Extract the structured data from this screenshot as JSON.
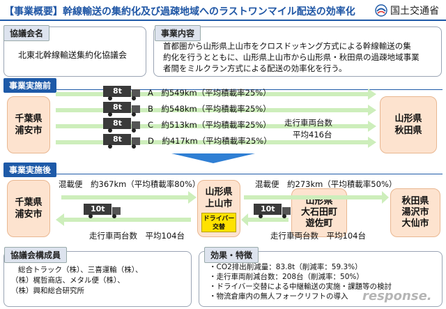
{
  "header": {
    "title": "【事業概要】幹線輸送の集約化及び過疎地域へのラストワンマイル配送の効率化",
    "ministry": "国土交通省"
  },
  "council": {
    "tag": "協議会名",
    "name": "北東北幹線輸送集約化協議会"
  },
  "content": {
    "tag": "事業内容",
    "lines": [
      "首都圏から山形県上山市をクロスドッキング方式による幹線輸送の集",
      "約化を行うとともに、山形県上山市から山形県・秋田県の過疎地域事業",
      "者間をミルクラン方式による配送の効率化を行う。"
    ]
  },
  "before": {
    "tag": "事業実施前",
    "origin": [
      "千葉県",
      "浦安市"
    ],
    "destination": [
      "山形県",
      "秋田県"
    ],
    "routes": [
      {
        "truck": "8t",
        "label": "A　約549km（平均積載率25%）"
      },
      {
        "truck": "8t",
        "label": "B　約548km（平均積載率25%）"
      },
      {
        "truck": "8t",
        "label": "C　約513km（平均積載率25%）"
      },
      {
        "truck": "8t",
        "label": "D　約417km（平均積載率25%）"
      }
    ],
    "vehicle_count": [
      "走行車両台数",
      "平均416台"
    ]
  },
  "after": {
    "tag": "事業実施後",
    "origin": [
      "千葉県",
      "浦安市"
    ],
    "hub": [
      "山形県",
      "上山市"
    ],
    "hub_badge": [
      "ドライバー",
      "交替"
    ],
    "mid": [
      "山形県",
      "大石田町",
      "遊佐町"
    ],
    "destination": [
      "秋田県",
      "湯沢市",
      "大仙市"
    ],
    "leg1": "混載便　約367km（平均積載率80%）",
    "leg2": "混載便　約273km（平均積載率50%）",
    "truck1": "10t",
    "truck2": "10t",
    "count1": "走行車両台数　平均104台",
    "count2": "走行車両台数　平均104台"
  },
  "members": {
    "tag": "協議会構成員",
    "lines": [
      "総合トラック（株）、三喜運輸（株）、",
      "（株）梶哲商店、メタル便（株）、",
      "（株）興和総合研究所"
    ]
  },
  "effects": {
    "tag": "効果・特徴",
    "lines": [
      "・CO2排出削減量：83.8t（削減率：59.3%）",
      "・走行車両削減台数：208台（削減率：50%）",
      "・ドライバー交替による中継輸送の実施・課題等の検討",
      "・物流倉庫内の無人フォークリフトの導入"
    ]
  },
  "watermark": "response.",
  "colors": {
    "accent": "#1e5aa8",
    "orange": "#fde3cf",
    "arrow": "#c9eab3",
    "badge": "#ffe200"
  }
}
